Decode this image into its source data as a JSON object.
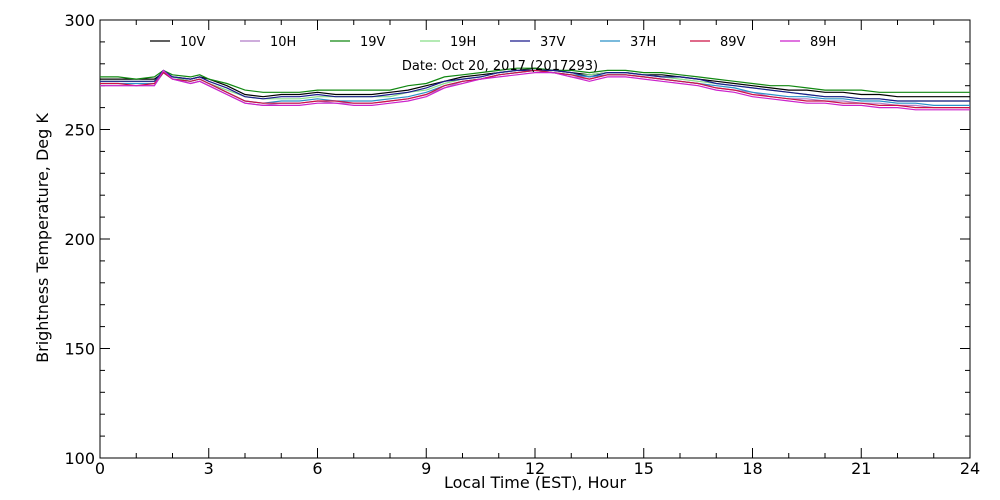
{
  "chart_data": {
    "type": "line",
    "title": "",
    "annotation": "Date: Oct 20, 2017 (2017293)",
    "xlabel": "Local Time (EST), Hour",
    "ylabel": "Brightness Temperature, Deg K",
    "xlim": [
      0,
      24
    ],
    "ylim": [
      100,
      300
    ],
    "xticks": [
      0,
      3,
      6,
      9,
      12,
      15,
      18,
      21,
      24
    ],
    "yticks": [
      100,
      150,
      200,
      250,
      300
    ],
    "grid": false,
    "legend_position": "top",
    "x": [
      0,
      0.5,
      1,
      1.5,
      1.75,
      2,
      2.5,
      2.75,
      3,
      3.5,
      4,
      4.5,
      5,
      5.5,
      6,
      6.5,
      7,
      7.5,
      8,
      8.5,
      9,
      9.5,
      10,
      10.5,
      11,
      11.5,
      12,
      12.5,
      13,
      13.5,
      14,
      14.5,
      15,
      15.5,
      16,
      16.5,
      17,
      17.5,
      18,
      18.5,
      19,
      19.5,
      20,
      20.5,
      21,
      21.5,
      22,
      22.5,
      23,
      23.5,
      24
    ],
    "series": [
      {
        "name": "10V",
        "color": "#000000",
        "values": [
          273,
          273,
          273,
          273,
          276,
          274,
          273,
          274,
          273,
          270,
          266,
          265,
          266,
          266,
          267,
          266,
          266,
          266,
          267,
          268,
          270,
          272,
          274,
          275,
          276,
          277,
          278,
          277,
          276,
          275,
          276,
          276,
          275,
          275,
          274,
          273,
          272,
          271,
          270,
          269,
          268,
          268,
          267,
          267,
          266,
          266,
          265,
          265,
          265,
          265,
          265
        ]
      },
      {
        "name": "10H",
        "color": "#b07cc8",
        "values": [
          270,
          270,
          270,
          270,
          276,
          273,
          271,
          272,
          270,
          266,
          262,
          261,
          262,
          262,
          263,
          262,
          262,
          262,
          263,
          264,
          266,
          269,
          272,
          273,
          275,
          276,
          277,
          276,
          274,
          273,
          275,
          275,
          274,
          273,
          272,
          271,
          269,
          268,
          267,
          265,
          264,
          264,
          263,
          263,
          262,
          262,
          261,
          261,
          260,
          260,
          260
        ]
      },
      {
        "name": "19V",
        "color": "#118811",
        "values": [
          274,
          274,
          273,
          274,
          277,
          275,
          274,
          275,
          273,
          271,
          268,
          267,
          267,
          267,
          268,
          268,
          268,
          268,
          268,
          270,
          271,
          274,
          275,
          276,
          277,
          278,
          278,
          277,
          277,
          276,
          277,
          277,
          276,
          276,
          275,
          274,
          273,
          272,
          271,
          270,
          270,
          269,
          268,
          268,
          268,
          267,
          267,
          267,
          267,
          267,
          267
        ]
      },
      {
        "name": "19H",
        "color": "#88dd88",
        "values": [
          272,
          272,
          272,
          272,
          276,
          274,
          272,
          273,
          271,
          268,
          265,
          264,
          264,
          264,
          265,
          265,
          265,
          265,
          265,
          267,
          268,
          271,
          273,
          274,
          276,
          277,
          277,
          276,
          275,
          275,
          276,
          276,
          275,
          274,
          273,
          272,
          271,
          270,
          269,
          268,
          267,
          266,
          265,
          265,
          264,
          264,
          263,
          263,
          263,
          263,
          263
        ]
      },
      {
        "name": "37V",
        "color": "#1a1a8c",
        "values": [
          272,
          272,
          272,
          272,
          277,
          274,
          273,
          274,
          272,
          269,
          265,
          264,
          265,
          265,
          266,
          265,
          265,
          265,
          266,
          267,
          269,
          272,
          273,
          274,
          276,
          277,
          277,
          277,
          276,
          274,
          276,
          276,
          275,
          274,
          274,
          273,
          271,
          270,
          269,
          268,
          267,
          266,
          265,
          265,
          264,
          264,
          263,
          263,
          263,
          263,
          263
        ]
      },
      {
        "name": "37H",
        "color": "#2a90c8",
        "values": [
          271,
          271,
          271,
          271,
          276,
          273,
          272,
          273,
          271,
          267,
          263,
          262,
          263,
          263,
          264,
          263,
          263,
          263,
          264,
          265,
          267,
          270,
          272,
          273,
          275,
          276,
          277,
          276,
          275,
          274,
          275,
          275,
          274,
          273,
          272,
          271,
          270,
          269,
          267,
          266,
          265,
          265,
          264,
          264,
          263,
          263,
          262,
          262,
          261,
          261,
          261
        ]
      },
      {
        "name": "89V",
        "color": "#cc1144",
        "values": [
          271,
          271,
          270,
          271,
          276,
          273,
          272,
          273,
          271,
          267,
          263,
          262,
          262,
          262,
          263,
          263,
          262,
          262,
          263,
          264,
          266,
          270,
          272,
          273,
          275,
          276,
          277,
          276,
          275,
          273,
          275,
          275,
          274,
          273,
          272,
          271,
          269,
          268,
          266,
          265,
          264,
          263,
          263,
          262,
          262,
          261,
          261,
          260,
          260,
          260,
          260
        ]
      },
      {
        "name": "89H",
        "color": "#cc22cc",
        "values": [
          270,
          270,
          270,
          270,
          277,
          273,
          271,
          272,
          270,
          266,
          262,
          261,
          261,
          261,
          262,
          262,
          261,
          261,
          262,
          263,
          265,
          269,
          271,
          273,
          274,
          275,
          276,
          276,
          274,
          272,
          274,
          274,
          273,
          272,
          271,
          270,
          268,
          267,
          265,
          264,
          263,
          262,
          262,
          261,
          261,
          260,
          260,
          259,
          259,
          259,
          259
        ]
      }
    ]
  }
}
